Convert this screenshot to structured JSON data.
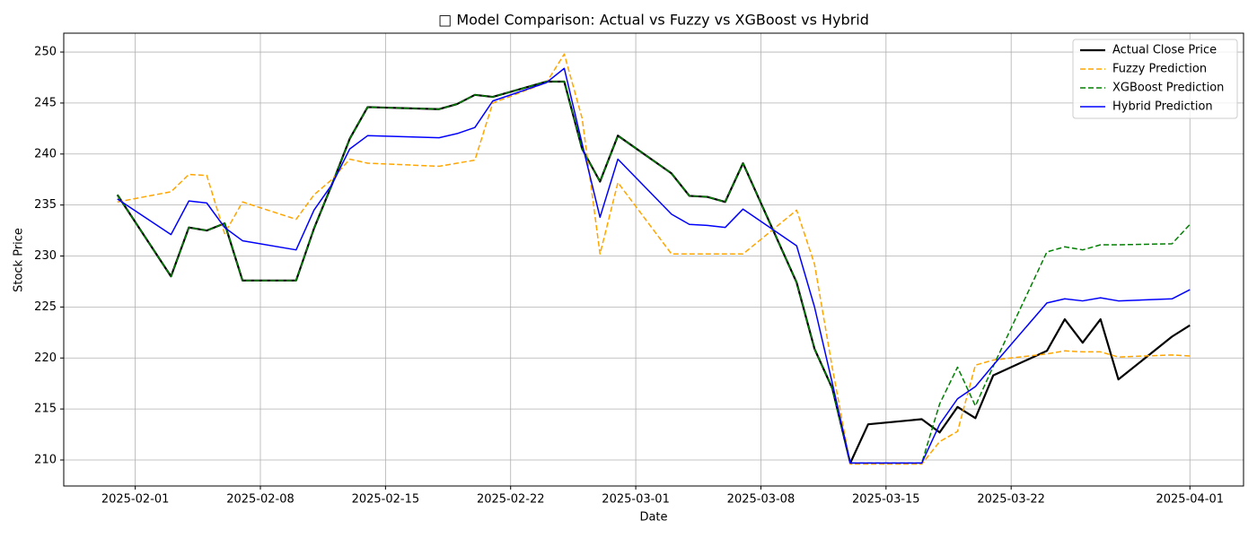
{
  "chart_data": {
    "type": "line",
    "title": "□ Model Comparison: Actual vs Fuzzy vs XGBoost vs Hybrid",
    "xlabel": "Date",
    "ylabel": "Stock Price",
    "x": [
      "2025-01-31",
      "2025-02-03",
      "2025-02-04",
      "2025-02-05",
      "2025-02-06",
      "2025-02-07",
      "2025-02-10",
      "2025-02-11",
      "2025-02-12",
      "2025-02-13",
      "2025-02-14",
      "2025-02-18",
      "2025-02-19",
      "2025-02-20",
      "2025-02-21",
      "2025-02-24",
      "2025-02-25",
      "2025-02-26",
      "2025-02-27",
      "2025-02-28",
      "2025-03-03",
      "2025-03-04",
      "2025-03-05",
      "2025-03-06",
      "2025-03-07",
      "2025-03-10",
      "2025-03-11",
      "2025-03-12",
      "2025-03-13",
      "2025-03-14",
      "2025-03-17",
      "2025-03-18",
      "2025-03-19",
      "2025-03-20",
      "2025-03-21",
      "2025-03-24",
      "2025-03-25",
      "2025-03-26",
      "2025-03-27",
      "2025-03-28",
      "2025-03-31",
      "2025-04-01"
    ],
    "series": [
      {
        "name": "Actual Close Price",
        "color": "#000000",
        "linestyle": "solid",
        "width": 2.2,
        "values": [
          236,
          228,
          232.8,
          232.5,
          233.2,
          227.6,
          227.6,
          232.7,
          237,
          241.5,
          244.6,
          244.4,
          244.9,
          245.8,
          245.6,
          247.1,
          247.1,
          240.5,
          237.3,
          241.8,
          238.1,
          235.9,
          235.8,
          235.3,
          239.1,
          227.4,
          220.9,
          217,
          209.7,
          213.5,
          214,
          212.7,
          215.2,
          214.1,
          218.3,
          220.7,
          223.8,
          221.5,
          223.8,
          217.9,
          222.1,
          223.2
        ]
      },
      {
        "name": "Fuzzy Prediction",
        "color": "#ffa500",
        "linestyle": "dashed",
        "width": 1.5,
        "values": [
          235.3,
          236.3,
          238,
          237.9,
          232.2,
          235.3,
          233.6,
          236,
          237.5,
          239.5,
          239.1,
          238.8,
          239.1,
          239.4,
          245,
          247,
          249.8,
          243.5,
          230.2,
          237.2,
          230.2,
          230.2,
          230.2,
          230.2,
          230.2,
          234.5,
          229.2,
          219,
          209.6,
          209.6,
          209.6,
          211.8,
          212.8,
          219.3,
          219.8,
          220.4,
          220.7,
          220.6,
          220.6,
          220.1,
          220.3,
          220.2
        ]
      },
      {
        "name": "XGBoost Prediction",
        "color": "#008000",
        "linestyle": "dashed",
        "width": 1.5,
        "values": [
          236,
          228,
          232.8,
          232.5,
          233.2,
          227.6,
          227.6,
          232.7,
          237,
          241.5,
          244.6,
          244.4,
          244.9,
          245.8,
          245.6,
          247.1,
          247.1,
          240.5,
          237.3,
          241.8,
          238.1,
          235.9,
          235.8,
          235.3,
          239.1,
          227.4,
          220.9,
          217,
          209.7,
          209.7,
          209.7,
          215.5,
          219.1,
          215.3,
          219.2,
          230.4,
          230.9,
          230.6,
          231.1,
          231.1,
          231.2,
          233.1
        ]
      },
      {
        "name": "Hybrid Prediction",
        "color": "#0000ff",
        "linestyle": "solid",
        "width": 1.5,
        "values": [
          235.6,
          232.1,
          235.4,
          235.2,
          232.8,
          231.5,
          230.6,
          234.5,
          237,
          240.5,
          241.8,
          241.6,
          242,
          242.6,
          245.2,
          247,
          248.4,
          241,
          233.8,
          239.5,
          234.1,
          233.1,
          233,
          232.8,
          234.6,
          231,
          225,
          217.5,
          209.7,
          209.7,
          209.7,
          213.5,
          216,
          217.2,
          219.3,
          225.4,
          225.8,
          225.6,
          225.9,
          225.6,
          225.8,
          226.7
        ]
      }
    ],
    "xlim": [
      "2025-01-28",
      "2025-04-04"
    ],
    "xticks": [
      "2025-02-01",
      "2025-02-08",
      "2025-02-15",
      "2025-02-22",
      "2025-03-01",
      "2025-03-08",
      "2025-03-15",
      "2025-03-22",
      "2025-04-01"
    ],
    "ylim": [
      207.45,
      251.85
    ],
    "yticks": [
      210,
      215,
      220,
      225,
      230,
      235,
      240,
      245,
      250
    ],
    "grid": true,
    "legend": "upper right"
  }
}
